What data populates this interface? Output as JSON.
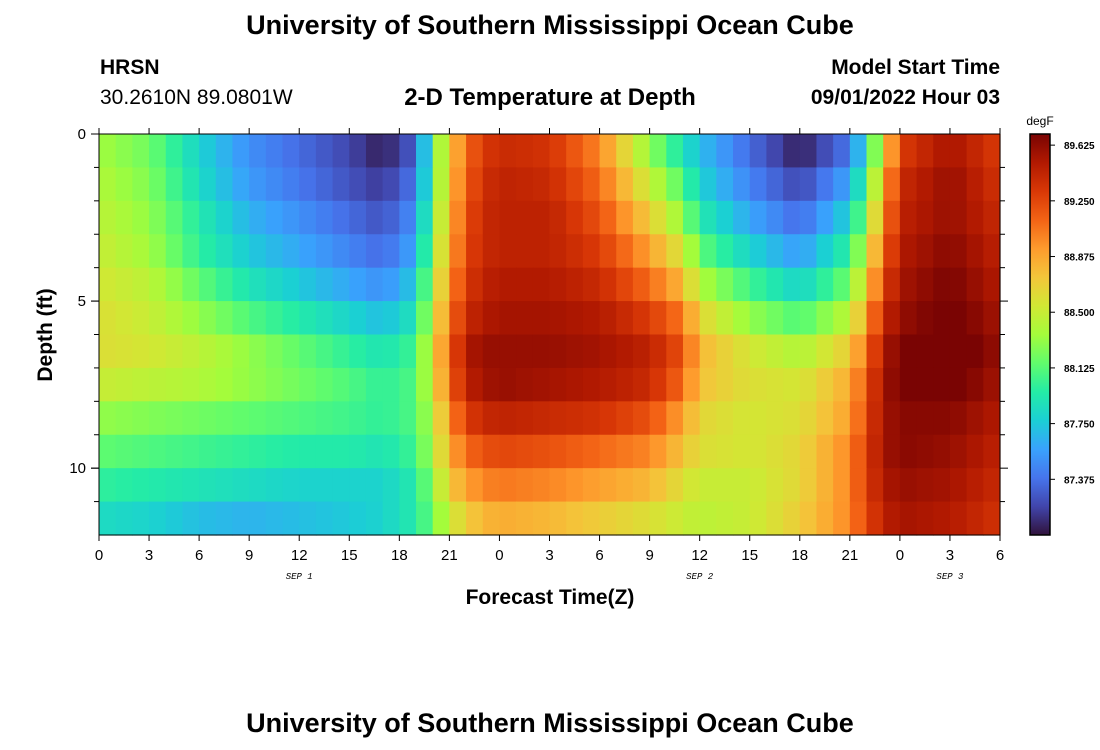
{
  "header": {
    "title": "University of Southern Mississippi Ocean Cube",
    "station": "HRSN",
    "coords": "30.2610N  89.0801W",
    "plot_title": "2-D Temperature at Depth",
    "model_start_label": "Model Start Time",
    "model_start_value": "09/01/2022 Hour 03"
  },
  "footer": {
    "title": "University of Southern Mississippi Ocean Cube"
  },
  "colors": {
    "colormap": [
      "#30123b",
      "#4145ab",
      "#4675ed",
      "#39a2fc",
      "#1bcfd4",
      "#24eca6",
      "#61fc6c",
      "#a4fc3b",
      "#d1e834",
      "#f3c63a",
      "#fe9b2d",
      "#f36315",
      "#d93806",
      "#b11901",
      "#7a0403"
    ]
  },
  "chart_data": {
    "type": "heatmap",
    "xlabel": "Forecast Time(Z)",
    "ylabel": "Depth (ft)",
    "x_ticks": [
      "0",
      "3",
      "6",
      "9",
      "12",
      "15",
      "18",
      "21",
      "0",
      "3",
      "6",
      "9",
      "12",
      "15",
      "18",
      "21",
      "0",
      "3",
      "6"
    ],
    "x_hours": [
      0,
      3,
      6,
      9,
      12,
      15,
      18,
      21,
      24,
      27,
      30,
      33,
      36,
      39,
      42,
      45,
      48,
      51,
      54
    ],
    "xlim": [
      0,
      54
    ],
    "date_labels": [
      {
        "text": "SEP 1",
        "hour": 12
      },
      {
        "text": "SEP 2",
        "hour": 36
      },
      {
        "text": "SEP 3",
        "hour": 51
      }
    ],
    "y_ticks": [
      "0",
      "5",
      "10"
    ],
    "y_values": [
      0,
      5,
      10
    ],
    "ylim": [
      0,
      12
    ],
    "colorbar": {
      "unit": "degF",
      "labels": [
        "89.625",
        "89.250",
        "88.875",
        "88.500",
        "88.125",
        "87.750",
        "87.375"
      ],
      "label_values": [
        89.625,
        89.25,
        88.875,
        88.5,
        88.125,
        87.75,
        87.375
      ],
      "range": [
        87.0,
        89.7
      ]
    },
    "depth_levels_ft": [
      0.5,
      1.5,
      2.5,
      3.5,
      4.5,
      5.5,
      6.5,
      7.5,
      8.5,
      9.5,
      10.5,
      11.5
    ],
    "time_key_hours": [
      0,
      3,
      6,
      9,
      12,
      15,
      17,
      19,
      20,
      21,
      22,
      23,
      24,
      27,
      30,
      33,
      35,
      36,
      39,
      42,
      45,
      46,
      47,
      48,
      51,
      54
    ],
    "temperature_degF": [
      [
        88.35,
        88.2,
        87.8,
        87.5,
        87.35,
        87.2,
        87.05,
        87.3,
        88.1,
        88.7,
        89.1,
        89.3,
        89.4,
        89.35,
        89.0,
        88.3,
        87.9,
        87.7,
        87.35,
        87.05,
        87.4,
        87.9,
        88.6,
        89.3,
        89.55,
        89.3
      ],
      [
        88.4,
        88.25,
        87.85,
        87.55,
        87.4,
        87.25,
        87.15,
        87.4,
        88.1,
        88.75,
        89.15,
        89.35,
        89.45,
        89.4,
        89.1,
        88.5,
        88.1,
        87.8,
        87.45,
        87.2,
        87.6,
        88.1,
        88.8,
        89.4,
        89.6,
        89.35
      ],
      [
        88.45,
        88.3,
        87.95,
        87.65,
        87.5,
        87.35,
        87.25,
        87.5,
        88.2,
        88.8,
        89.2,
        89.4,
        89.45,
        89.45,
        89.2,
        88.7,
        88.3,
        87.95,
        87.6,
        87.35,
        87.8,
        88.3,
        88.95,
        89.45,
        89.6,
        89.4
      ],
      [
        88.5,
        88.35,
        88.0,
        87.75,
        87.6,
        87.45,
        87.35,
        87.6,
        88.3,
        88.85,
        89.25,
        89.4,
        89.45,
        89.45,
        89.3,
        88.9,
        88.55,
        88.15,
        87.8,
        87.55,
        88.0,
        88.5,
        89.1,
        89.5,
        89.65,
        89.45
      ],
      [
        88.55,
        88.45,
        88.15,
        87.9,
        87.75,
        87.6,
        87.5,
        87.75,
        88.4,
        88.95,
        89.3,
        89.45,
        89.5,
        89.5,
        89.4,
        89.1,
        88.8,
        88.4,
        88.05,
        87.8,
        88.2,
        88.7,
        89.25,
        89.55,
        89.7,
        89.5
      ],
      [
        88.6,
        88.5,
        88.3,
        88.1,
        87.95,
        87.8,
        87.7,
        87.9,
        88.5,
        89.05,
        89.4,
        89.5,
        89.55,
        89.55,
        89.5,
        89.3,
        89.05,
        88.65,
        88.3,
        88.1,
        88.45,
        88.9,
        89.4,
        89.6,
        89.75,
        89.55
      ],
      [
        88.6,
        88.55,
        88.45,
        88.3,
        88.15,
        88.0,
        87.9,
        88.05,
        88.6,
        89.15,
        89.5,
        89.6,
        89.6,
        89.6,
        89.55,
        89.45,
        89.2,
        88.8,
        88.55,
        88.4,
        88.7,
        89.1,
        89.5,
        89.7,
        89.8,
        89.6
      ],
      [
        88.5,
        88.45,
        88.4,
        88.3,
        88.2,
        88.1,
        88.0,
        88.1,
        88.55,
        89.1,
        89.45,
        89.55,
        89.6,
        89.55,
        89.5,
        89.4,
        89.1,
        88.75,
        88.6,
        88.55,
        88.85,
        89.2,
        89.55,
        89.7,
        89.75,
        89.55
      ],
      [
        88.3,
        88.25,
        88.2,
        88.15,
        88.1,
        88.05,
        88.0,
        88.1,
        88.45,
        88.95,
        89.3,
        89.4,
        89.45,
        89.4,
        89.35,
        89.2,
        88.9,
        88.65,
        88.55,
        88.6,
        88.9,
        89.25,
        89.55,
        89.65,
        89.65,
        89.5
      ],
      [
        88.15,
        88.1,
        88.05,
        88.0,
        87.95,
        87.95,
        87.9,
        88.05,
        88.4,
        88.85,
        89.1,
        89.2,
        89.25,
        89.2,
        89.1,
        89.0,
        88.75,
        88.6,
        88.55,
        88.65,
        89.0,
        89.3,
        89.55,
        89.65,
        89.6,
        89.45
      ],
      [
        88.0,
        87.95,
        87.9,
        87.85,
        87.8,
        87.8,
        87.8,
        87.95,
        88.3,
        88.7,
        88.9,
        89.0,
        89.05,
        89.0,
        88.9,
        88.8,
        88.6,
        88.5,
        88.5,
        88.65,
        89.0,
        89.3,
        89.5,
        89.6,
        89.55,
        89.4
      ],
      [
        87.85,
        87.8,
        87.7,
        87.65,
        87.7,
        87.75,
        87.8,
        87.95,
        88.2,
        88.5,
        88.7,
        88.8,
        88.85,
        88.8,
        88.7,
        88.6,
        88.5,
        88.45,
        88.5,
        88.7,
        89.0,
        89.25,
        89.45,
        89.55,
        89.5,
        89.35
      ]
    ]
  }
}
